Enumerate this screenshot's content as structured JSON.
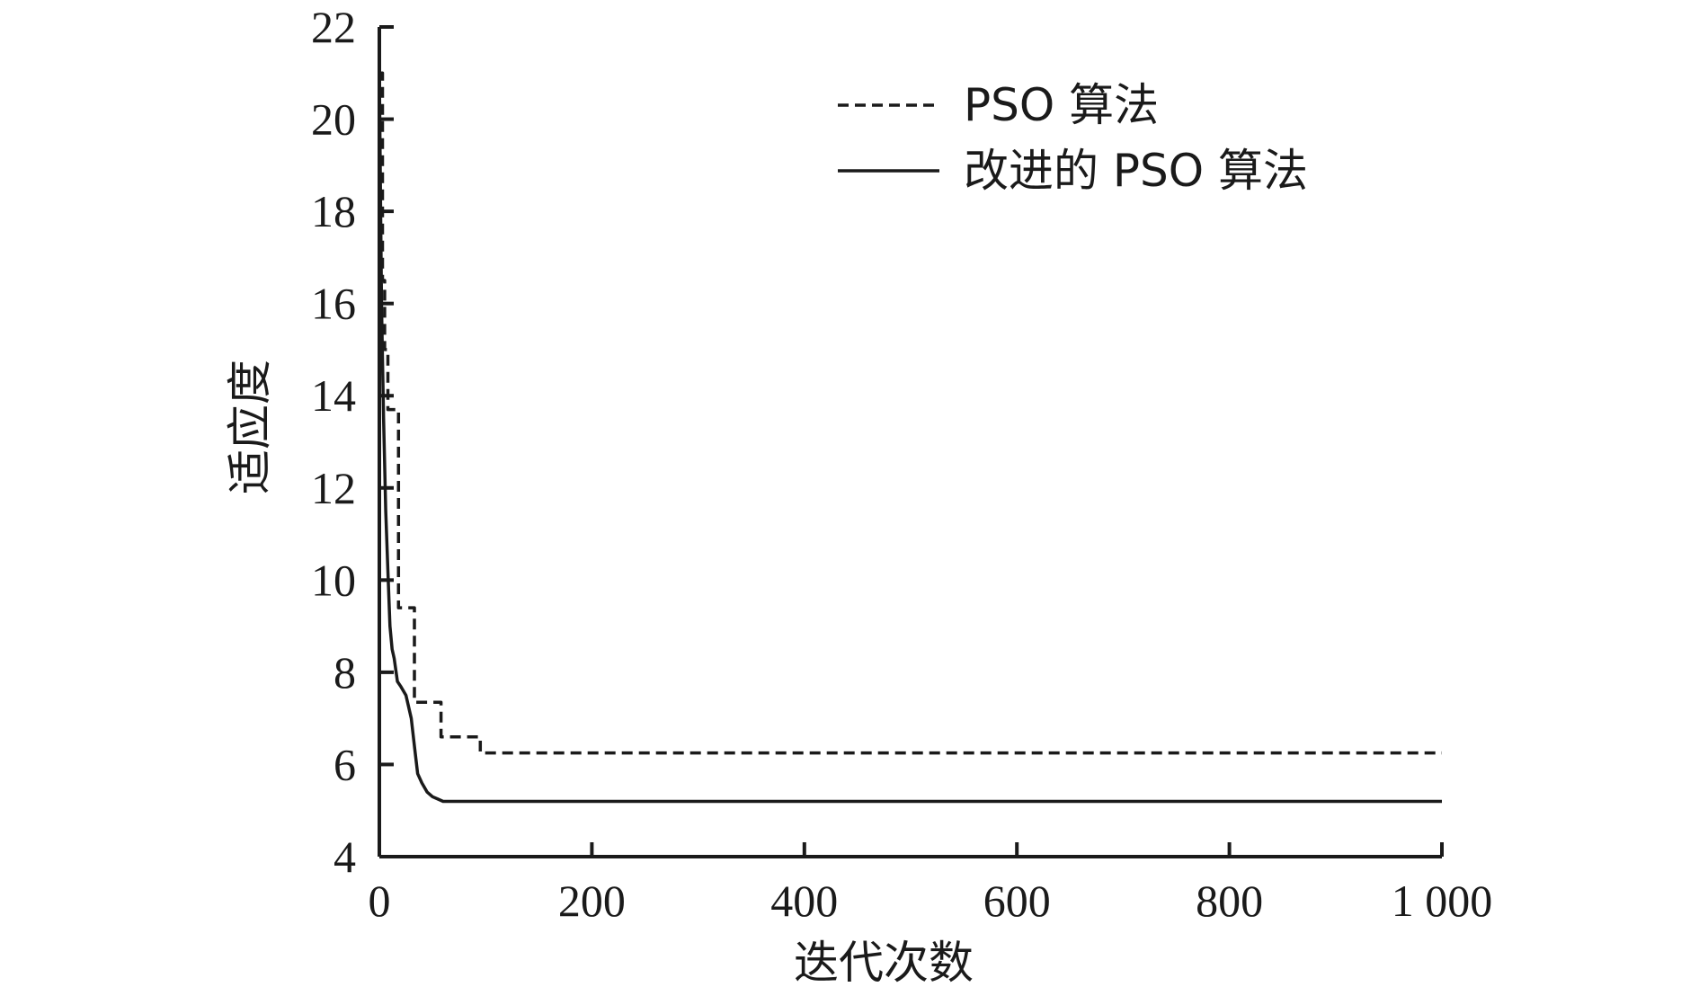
{
  "chart_data": {
    "type": "line",
    "title": "",
    "xlabel": "迭代次数",
    "ylabel": "适应度",
    "xlim": [
      0,
      1000
    ],
    "ylim": [
      4,
      22
    ],
    "xticks": [
      0,
      200,
      400,
      600,
      800,
      1000
    ],
    "xtick_labels": [
      "0",
      "200",
      "400",
      "600",
      "800",
      "1 000"
    ],
    "yticks": [
      4,
      6,
      8,
      10,
      12,
      14,
      16,
      18,
      20,
      22
    ],
    "ytick_labels": [
      "4",
      "6",
      "8",
      "10",
      "12",
      "14",
      "16",
      "18",
      "20",
      "22"
    ],
    "grid": false,
    "legend_position": "top-right",
    "series": [
      {
        "name": "PSO 算法",
        "style": "dashed",
        "color": "#1a1a1a",
        "x": [
          0,
          3,
          3,
          5,
          5,
          8,
          8,
          18,
          18,
          33,
          33,
          58,
          58,
          95,
          95,
          1000
        ],
        "y": [
          21.0,
          21.0,
          16.5,
          16.5,
          15.0,
          15.0,
          13.7,
          13.7,
          9.4,
          9.4,
          7.35,
          7.35,
          6.6,
          6.6,
          6.25,
          6.25
        ]
      },
      {
        "name": "改进的 PSO 算法",
        "style": "solid",
        "color": "#1a1a1a",
        "x": [
          0,
          2,
          4,
          6,
          8,
          10,
          12,
          14,
          17,
          20,
          25,
          30,
          33,
          36,
          40,
          45,
          50,
          55,
          60,
          1000
        ],
        "y": [
          21.0,
          16.0,
          13.5,
          11.5,
          10.2,
          9.0,
          8.5,
          8.3,
          7.8,
          7.7,
          7.5,
          7.0,
          6.4,
          5.8,
          5.6,
          5.4,
          5.3,
          5.25,
          5.2,
          5.2
        ]
      }
    ]
  }
}
